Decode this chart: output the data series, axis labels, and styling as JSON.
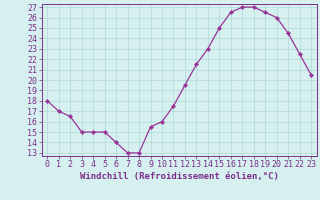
{
  "x_values": [
    0,
    1,
    2,
    3,
    4,
    5,
    6,
    7,
    8,
    9,
    10,
    11,
    12,
    13,
    14,
    15,
    16,
    17,
    18,
    19,
    20,
    21,
    22,
    23
  ],
  "y_values": [
    18,
    17,
    16.5,
    15,
    15,
    15,
    14,
    13,
    13,
    15.5,
    16,
    17.5,
    19.5,
    21.5,
    23,
    25,
    26.5,
    27,
    27,
    26.5,
    26,
    24.5,
    22.5,
    20.5
  ],
  "line_color": "#993399",
  "marker": "D",
  "marker_size": 2.2,
  "bg_color": "#d6f0f0",
  "grid_color": "#b0d8d8",
  "xlabel": "Windchill (Refroidissement éolien,°C)",
  "ylim_min": 13,
  "ylim_max": 27,
  "xlim_min": 0,
  "xlim_max": 23,
  "yticks": [
    13,
    14,
    15,
    16,
    17,
    18,
    19,
    20,
    21,
    22,
    23,
    24,
    25,
    26,
    27
  ],
  "xticks": [
    0,
    1,
    2,
    3,
    4,
    5,
    6,
    7,
    8,
    9,
    10,
    11,
    12,
    13,
    14,
    15,
    16,
    17,
    18,
    19,
    20,
    21,
    22,
    23
  ],
  "tick_color": "#7b2f8b",
  "label_color": "#7b2f8b",
  "axis_color": "#7b2f8b",
  "font_size": 6.0,
  "xlabel_fontsize": 6.5,
  "line_width": 0.9
}
